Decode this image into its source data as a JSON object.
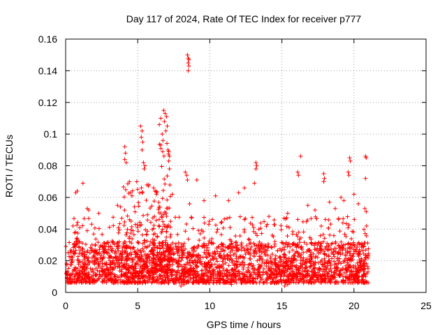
{
  "chart_data": {
    "type": "scatter",
    "title": "Day 117 of 2024, Rate Of TEC Index for receiver p777",
    "xlabel": "GPS time / hours",
    "ylabel": "ROTI / TECUs",
    "xlim": [
      0,
      25
    ],
    "ylim": [
      0,
      0.16
    ],
    "x_ticks": [
      "0",
      "5",
      "10",
      "15",
      "20",
      "25"
    ],
    "y_ticks": [
      "0",
      "0.02",
      "0.04",
      "0.06",
      "0.08",
      "0.1",
      "0.12",
      "0.14",
      "0.16"
    ],
    "grid": true,
    "marker": "+",
    "color": "#ff0000",
    "series": [
      {
        "name": "ROTI",
        "points": [
          [
            8.45,
            0.15
          ],
          [
            8.5,
            0.148
          ],
          [
            8.55,
            0.147
          ],
          [
            8.5,
            0.145
          ],
          [
            8.55,
            0.143
          ],
          [
            8.5,
            0.14
          ],
          [
            6.8,
            0.115
          ],
          [
            6.9,
            0.113
          ],
          [
            7.0,
            0.111
          ],
          [
            6.85,
            0.108
          ],
          [
            7.05,
            0.105
          ],
          [
            6.95,
            0.102
          ],
          [
            5.2,
            0.105
          ],
          [
            5.3,
            0.102
          ],
          [
            5.25,
            0.098
          ],
          [
            5.35,
            0.095
          ],
          [
            5.3,
            0.09
          ],
          [
            6.6,
            0.11
          ],
          [
            6.5,
            0.106
          ],
          [
            6.7,
            0.1
          ],
          [
            6.75,
            0.096
          ],
          [
            6.6,
            0.093
          ],
          [
            4.1,
            0.092
          ],
          [
            4.15,
            0.088
          ],
          [
            4.1,
            0.084
          ],
          [
            4.2,
            0.082
          ],
          [
            5.4,
            0.082
          ],
          [
            5.5,
            0.08
          ],
          [
            5.45,
            0.078
          ],
          [
            7.1,
            0.09
          ],
          [
            7.2,
            0.086
          ],
          [
            7.15,
            0.083
          ],
          [
            7.2,
            0.078
          ],
          [
            8.3,
            0.076
          ],
          [
            8.4,
            0.074
          ],
          [
            8.45,
            0.071
          ],
          [
            9.1,
            0.071
          ],
          [
            13.2,
            0.082
          ],
          [
            13.25,
            0.08
          ],
          [
            13.2,
            0.078
          ],
          [
            13.1,
            0.069
          ],
          [
            16.3,
            0.086
          ],
          [
            16.1,
            0.076
          ],
          [
            16.15,
            0.074
          ],
          [
            17.9,
            0.075
          ],
          [
            17.95,
            0.072
          ],
          [
            17.9,
            0.07
          ],
          [
            19.7,
            0.085
          ],
          [
            19.75,
            0.083
          ],
          [
            19.6,
            0.076
          ],
          [
            19.65,
            0.074
          ],
          [
            20.8,
            0.086
          ],
          [
            20.85,
            0.085
          ],
          [
            20.8,
            0.072
          ],
          [
            20.75,
            0.053
          ],
          [
            20.85,
            0.051
          ],
          [
            0.7,
            0.063
          ],
          [
            0.8,
            0.064
          ],
          [
            1.2,
            0.069
          ],
          [
            1.5,
            0.053
          ],
          [
            1.6,
            0.052
          ],
          [
            2.3,
            0.05
          ],
          [
            3.6,
            0.055
          ],
          [
            3.8,
            0.054
          ],
          [
            4.5,
            0.063
          ],
          [
            4.6,
            0.061
          ],
          [
            6.1,
            0.066
          ],
          [
            6.2,
            0.064
          ],
          [
            6.3,
            0.062
          ],
          [
            7.4,
            0.062
          ],
          [
            8.6,
            0.056
          ],
          [
            9.6,
            0.058
          ],
          [
            10.4,
            0.061
          ],
          [
            11.3,
            0.058
          ],
          [
            12.0,
            0.063
          ],
          [
            12.4,
            0.066
          ],
          [
            14.1,
            0.048
          ],
          [
            15.4,
            0.05
          ],
          [
            16.8,
            0.055
          ],
          [
            17.3,
            0.052
          ],
          [
            18.3,
            0.057
          ],
          [
            18.7,
            0.053
          ],
          [
            19.1,
            0.06
          ],
          [
            19.3,
            0.058
          ],
          [
            20.0,
            0.062
          ],
          [
            20.3,
            0.056
          ],
          [
            8.0,
            0.004
          ],
          [
            8.2,
            0.005
          ],
          [
            11.5,
            0.005
          ],
          [
            15.2,
            0.004
          ],
          [
            15.4,
            0.005
          ],
          [
            6.6,
            0.006
          ],
          [
            12.2,
            0.006
          ],
          [
            16.5,
            0.006
          ]
        ],
        "dense_bands": [
          {
            "x_start": 0.0,
            "x_end": 21.0,
            "y_low": 0.006,
            "y_high": 0.032,
            "density": 1.0
          },
          {
            "x_start": 0.3,
            "x_end": 21.0,
            "y_low": 0.01,
            "y_high": 0.048,
            "density": 0.35
          },
          {
            "x_start": 4.0,
            "x_end": 7.6,
            "y_low": 0.012,
            "y_high": 0.07,
            "density": 0.45
          },
          {
            "x_start": 6.4,
            "x_end": 7.3,
            "y_low": 0.02,
            "y_high": 0.095,
            "density": 0.5
          }
        ]
      }
    ]
  }
}
